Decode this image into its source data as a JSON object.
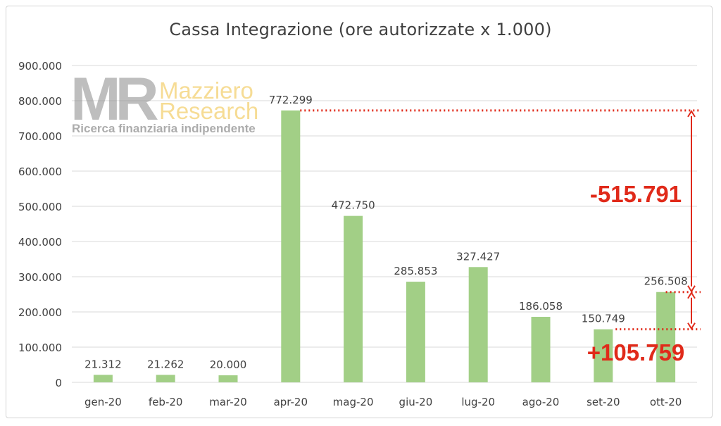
{
  "chart_data": {
    "type": "bar",
    "title": "Cassa Integrazione (ore autorizzate x 1.000)",
    "categories": [
      "gen-20",
      "feb-20",
      "mar-20",
      "apr-20",
      "mag-20",
      "giu-20",
      "lug-20",
      "ago-20",
      "set-20",
      "ott-20"
    ],
    "values": [
      21312,
      21262,
      20000,
      772299,
      472750,
      285853,
      327427,
      186058,
      150749,
      256508
    ],
    "data_labels": [
      "21.312",
      "21.262",
      "20.000",
      "772.299",
      "472.750",
      "285.853",
      "327.427",
      "186.058",
      "150.749",
      "256.508"
    ],
    "yticks": [
      "0",
      "100.000",
      "200.000",
      "300.000",
      "400.000",
      "500.000",
      "600.000",
      "700.000",
      "800.000",
      "900.000"
    ],
    "ylim": [
      0,
      900000
    ],
    "grid": true,
    "bar_color": "#a2cf86",
    "annotations": {
      "drop": "-515.791",
      "rise": "+105.759",
      "color": "#e02a1a"
    }
  },
  "watermark": {
    "monogram": "MR",
    "name_line1": "Mazziero",
    "name_line2": "Research",
    "tagline": "Ricerca finanziaria indipendente"
  }
}
